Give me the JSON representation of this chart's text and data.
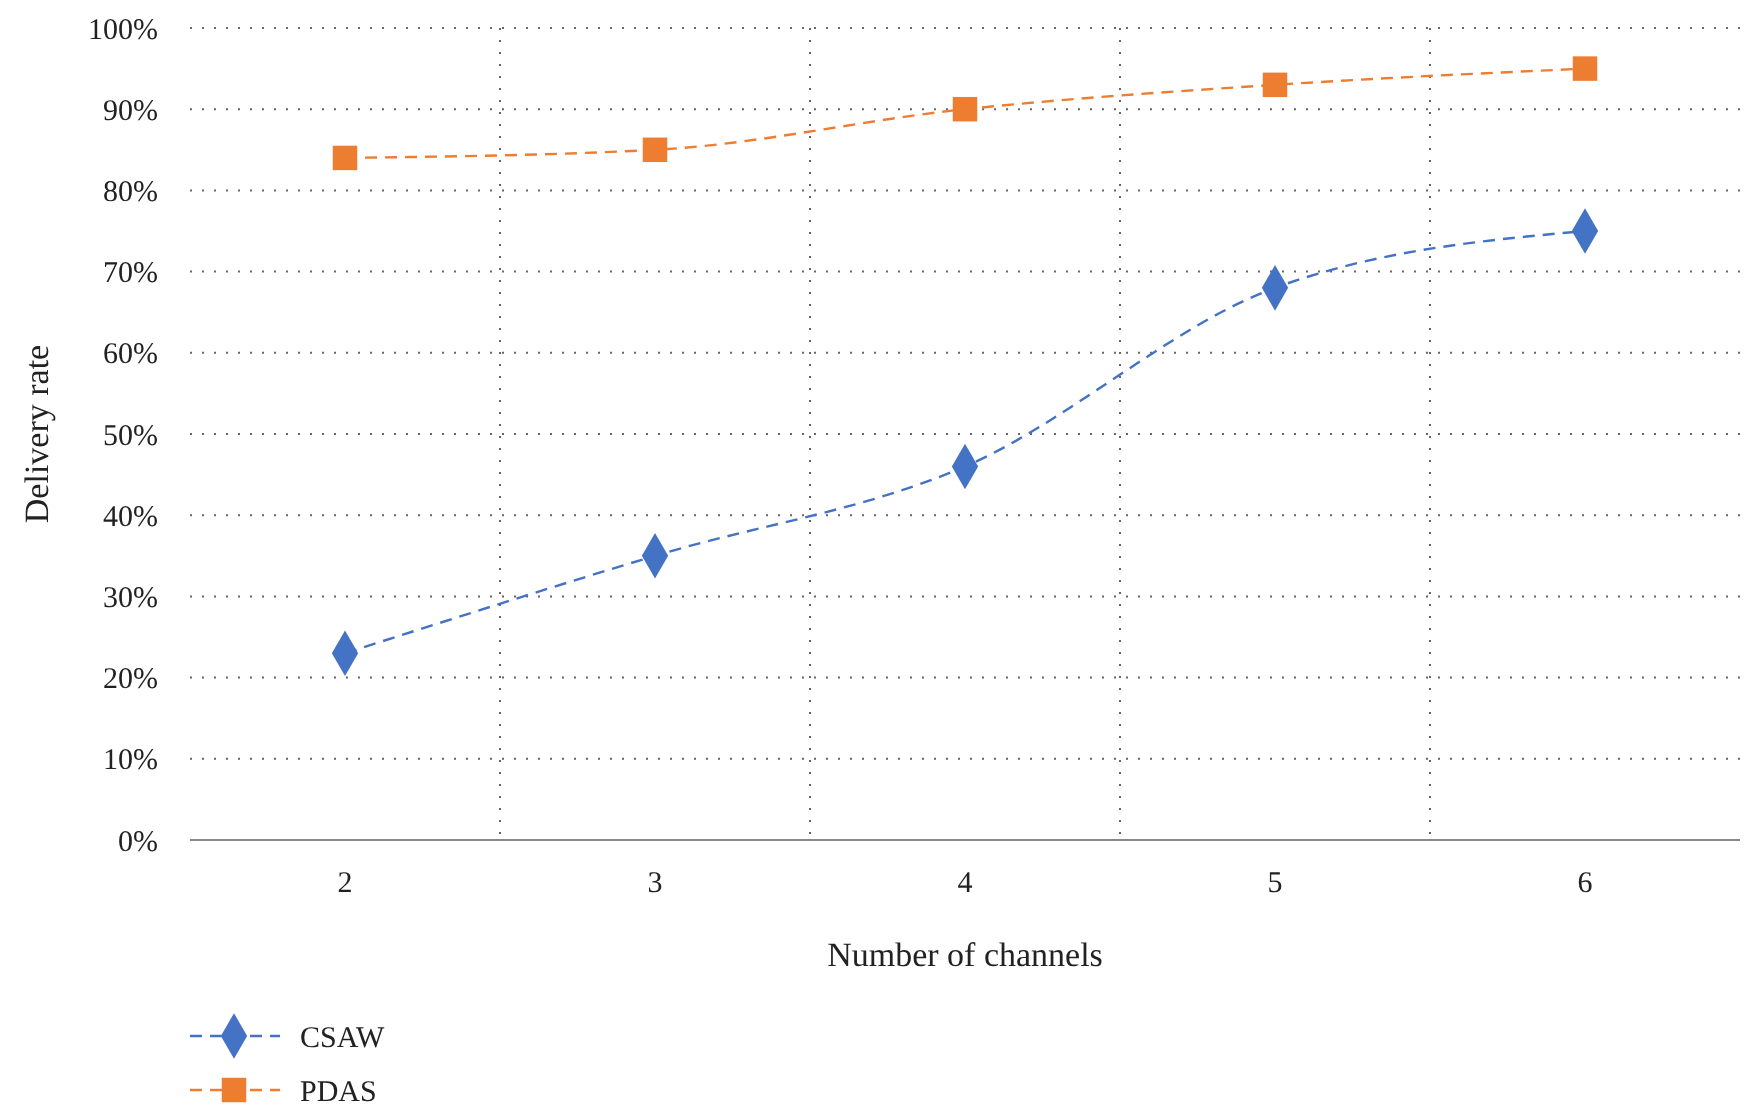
{
  "chart_data": {
    "type": "line",
    "xlabel": "Number of channels",
    "ylabel": "Delivery rate",
    "categories": [
      "2",
      "3",
      "4",
      "5",
      "6"
    ],
    "series": [
      {
        "name": "CSAW",
        "color": "#4472c4",
        "marker": "diamond",
        "line_style": "dashed",
        "values": [
          23,
          35,
          46,
          68,
          75
        ]
      },
      {
        "name": "PDAS",
        "color": "#ed7d31",
        "marker": "square",
        "line_style": "dashed",
        "values": [
          84,
          85,
          90,
          93,
          95
        ]
      }
    ],
    "ylim": [
      0,
      100
    ],
    "yticks": [
      {
        "value": 0,
        "label": "0%"
      },
      {
        "value": 10,
        "label": "10%"
      },
      {
        "value": 20,
        "label": "20%"
      },
      {
        "value": 30,
        "label": "30%"
      },
      {
        "value": 40,
        "label": "40%"
      },
      {
        "value": 50,
        "label": "50%"
      },
      {
        "value": 60,
        "label": "60%"
      },
      {
        "value": 70,
        "label": "70%"
      },
      {
        "value": 80,
        "label": "80%"
      },
      {
        "value": 90,
        "label": "90%"
      },
      {
        "value": 100,
        "label": "100%"
      }
    ],
    "grid": true,
    "legend": "bottom left"
  }
}
